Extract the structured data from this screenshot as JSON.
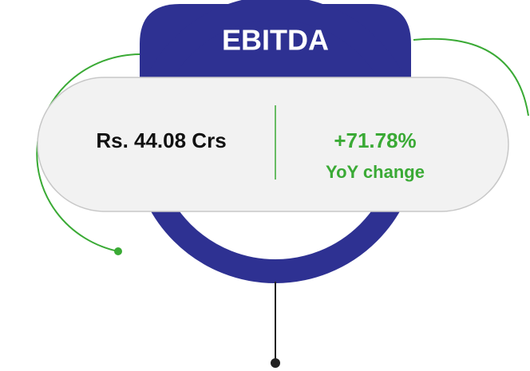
{
  "title": "EBITDA",
  "value": "Rs. 44.08 Crs",
  "change": "+71.78%",
  "change_label": "YoY change"
}
